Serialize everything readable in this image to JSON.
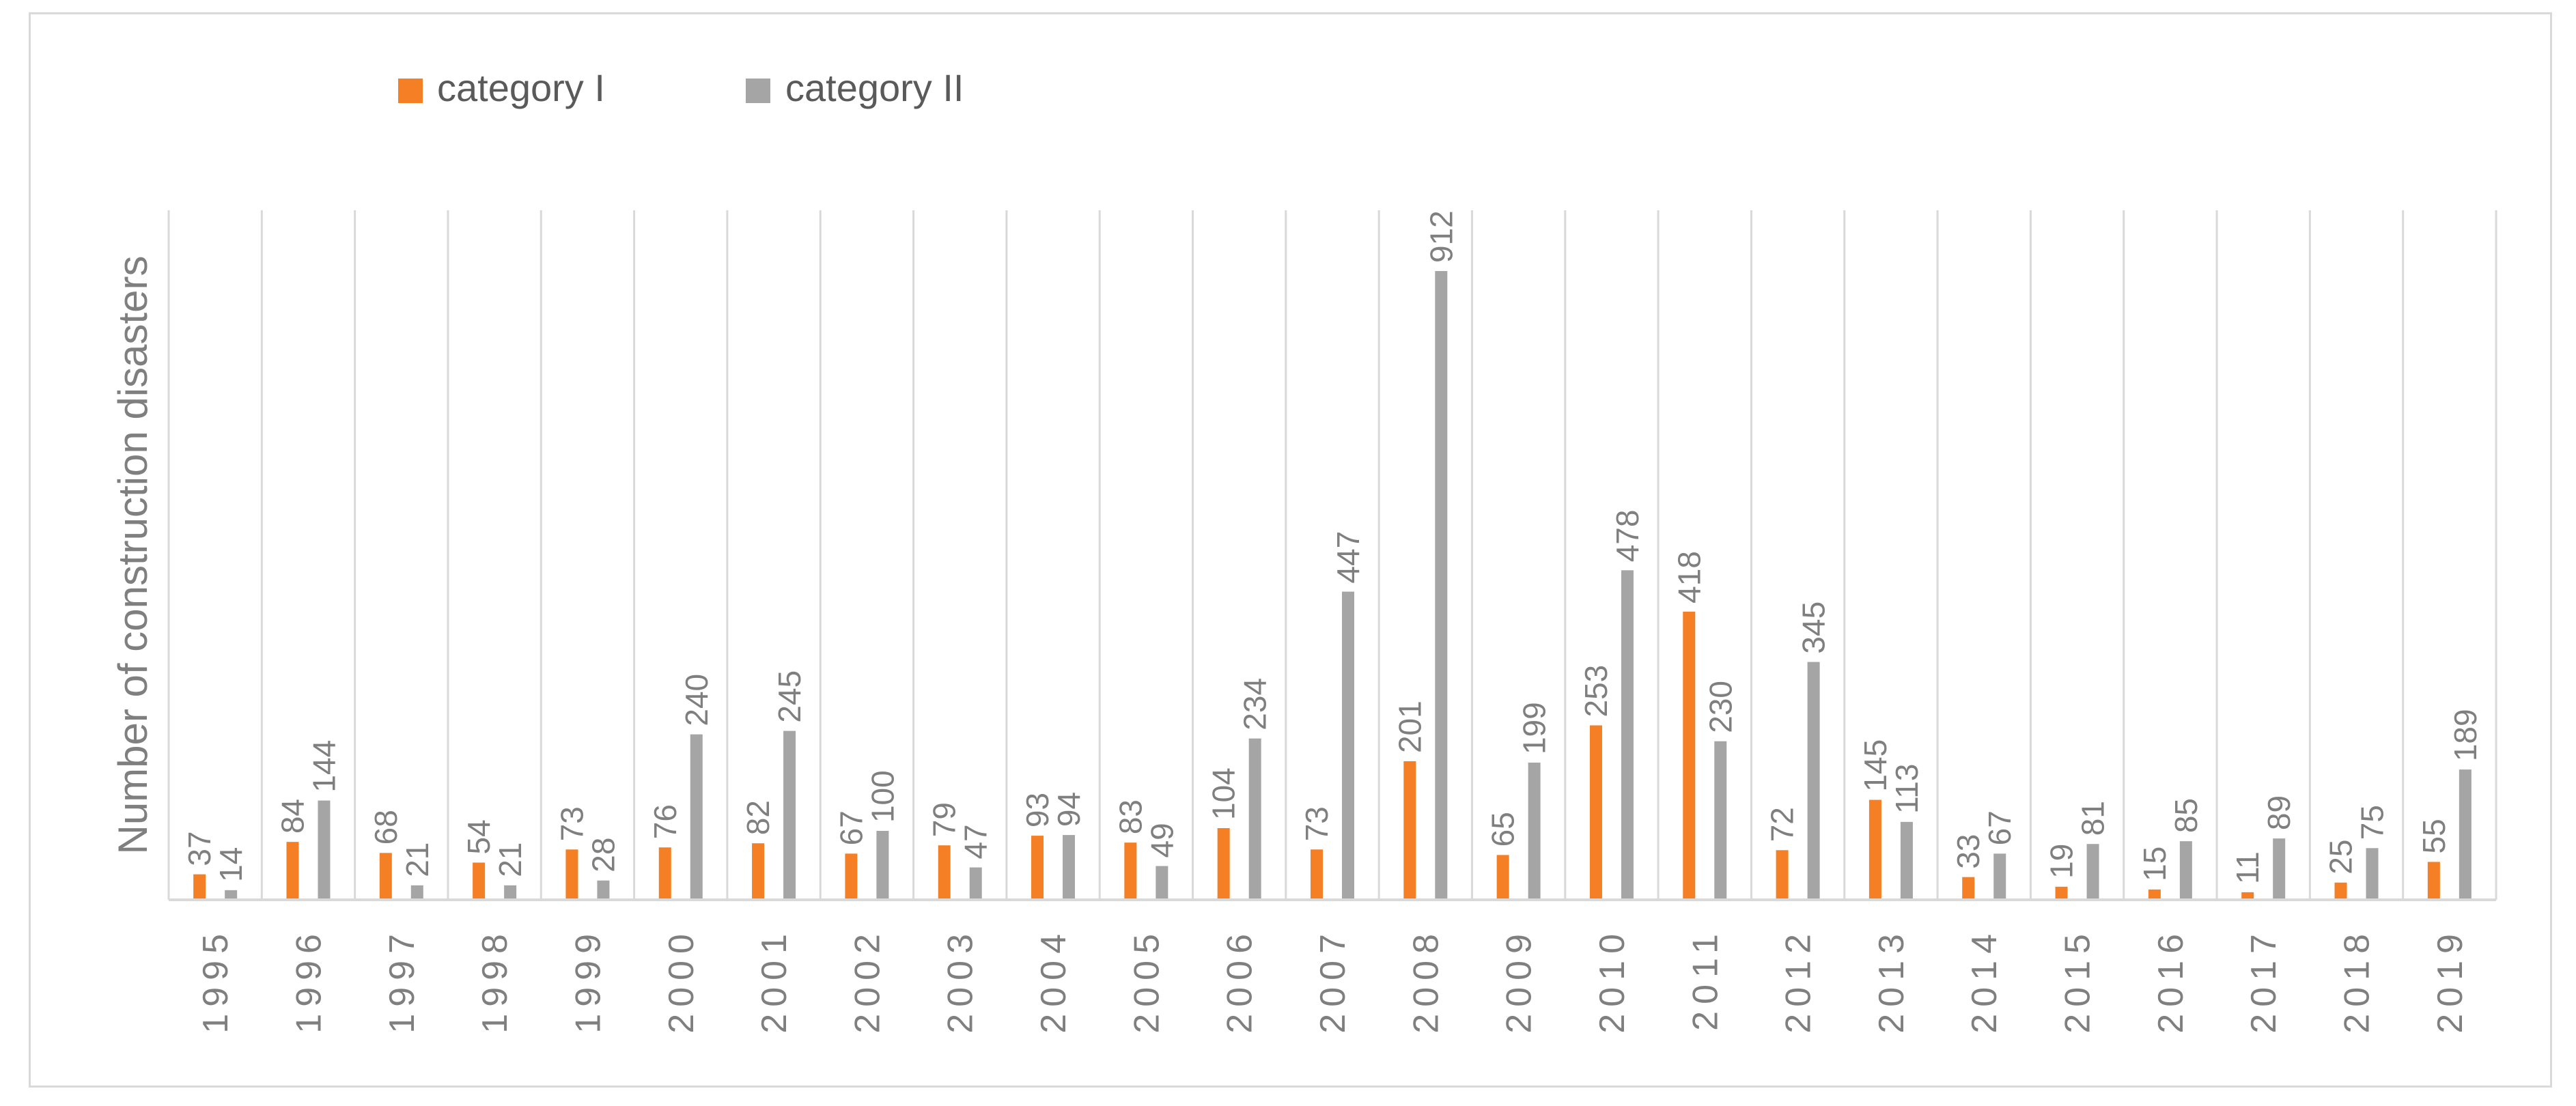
{
  "colors": {
    "category_1": "#f47f24",
    "category_2": "#a5a5a5",
    "grid": "#d9d9d9",
    "axis_text": "#7f7f7f",
    "legend_text": "#5a5a5a"
  },
  "chart_data": {
    "type": "bar",
    "title": "",
    "xlabel": "",
    "ylabel": "Number of construction disasters",
    "categories": [
      "1995",
      "1996",
      "1997",
      "1998",
      "1999",
      "2000",
      "2001",
      "2002",
      "2003",
      "2004",
      "2005",
      "2006",
      "2007",
      "2008",
      "2009",
      "2010",
      "2011",
      "2012",
      "2013",
      "2014",
      "2015",
      "2016",
      "2017",
      "2018",
      "2019"
    ],
    "series": [
      {
        "name": "category I",
        "color": "#f47f24",
        "values": [
          37,
          84,
          68,
          54,
          73,
          76,
          82,
          67,
          79,
          93,
          83,
          104,
          73,
          201,
          65,
          253,
          418,
          72,
          145,
          33,
          19,
          15,
          11,
          25,
          55
        ]
      },
      {
        "name": "category II",
        "color": "#a5a5a5",
        "values": [
          14,
          144,
          21,
          21,
          28,
          240,
          245,
          100,
          47,
          94,
          49,
          234,
          447,
          912,
          199,
          478,
          230,
          345,
          113,
          67,
          81,
          85,
          89,
          75,
          189
        ]
      }
    ],
    "ylim": [
      0,
      1000
    ],
    "grid": "vertical category separators",
    "legend_position": "top-left",
    "data_labels": "rotated, above bars",
    "tick_labels_rotated": true
  }
}
